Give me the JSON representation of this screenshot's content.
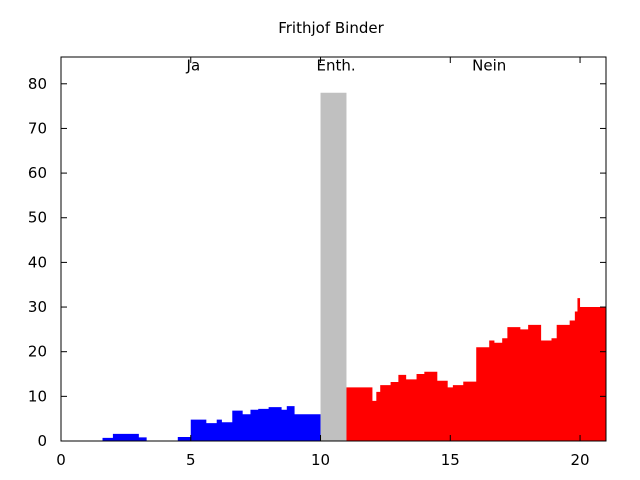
{
  "chart_data": {
    "type": "area",
    "title": "Frithjof Binder",
    "xlabel": "",
    "ylabel": "",
    "xlim": [
      0,
      21
    ],
    "ylim": [
      0,
      86
    ],
    "x_ticks": [
      "0",
      "5",
      "10",
      "15",
      "20"
    ],
    "y_ticks": [
      "0",
      "10",
      "20",
      "30",
      "40",
      "50",
      "60",
      "70",
      "80"
    ],
    "grid": false,
    "legend": "none",
    "annotations": [
      {
        "text": "Ja",
        "x": 5.1,
        "y": 83
      },
      {
        "text": "Enth.",
        "x": 10.6,
        "y": 83
      },
      {
        "text": "Nein",
        "x": 16.5,
        "y": 83
      }
    ],
    "series": [
      {
        "name": "Ja",
        "color": "#0000ff",
        "step": true,
        "x": [
          1.6,
          2.0,
          3.0,
          3.3,
          4.5,
          5.0,
          5.6,
          6.0,
          6.2,
          6.6,
          7.0,
          7.3,
          7.6,
          8.0,
          8.5,
          8.7,
          9.0,
          10.0
        ],
        "values": [
          0.7,
          1.6,
          0.8,
          0,
          0.9,
          4.8,
          4.0,
          4.8,
          4.2,
          6.8,
          6.0,
          7.0,
          7.2,
          7.6,
          7.0,
          7.8,
          6.0,
          6.0
        ]
      },
      {
        "name": "Enth.",
        "color": "#c0c0c0",
        "step": true,
        "x": [
          10.0,
          11.0
        ],
        "values": [
          78,
          78
        ]
      },
      {
        "name": "Nein",
        "color": "#ff0000",
        "step": true,
        "x": [
          11.0,
          12.0,
          12.15,
          12.3,
          12.7,
          13.0,
          13.3,
          13.7,
          14.0,
          14.5,
          14.9,
          15.1,
          15.5,
          16.0,
          16.5,
          16.7,
          17.0,
          17.2,
          17.7,
          18.0,
          18.5,
          18.9,
          19.1,
          19.6,
          19.8,
          19.9,
          20.0,
          21.0
        ],
        "values": [
          12,
          9,
          11,
          12.5,
          13.2,
          14.8,
          13.8,
          15,
          15.5,
          13.5,
          12,
          12.5,
          13.3,
          21,
          22.5,
          22,
          23,
          25.5,
          25,
          26,
          22.5,
          23,
          26,
          27,
          29,
          32,
          30,
          30
        ]
      }
    ]
  }
}
